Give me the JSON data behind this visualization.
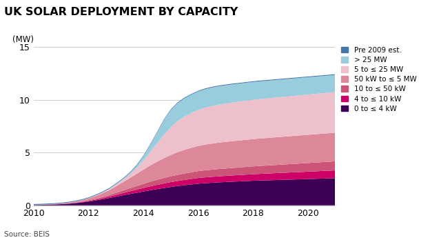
{
  "title": "UK SOLAR DEPLOYMENT BY CAPACITY",
  "ylabel": "(MW)",
  "source": "Source: BEIS",
  "ylim": [
    0,
    15
  ],
  "yticks": [
    0,
    5,
    10,
    15
  ],
  "background_color": "#ffffff",
  "years": [
    2010,
    2010.25,
    2010.5,
    2010.75,
    2011,
    2011.25,
    2011.5,
    2011.75,
    2012,
    2012.25,
    2012.5,
    2012.75,
    2013,
    2013.25,
    2013.5,
    2013.75,
    2014,
    2014.25,
    2014.5,
    2014.75,
    2015,
    2015.25,
    2015.5,
    2015.75,
    2016,
    2016.25,
    2016.5,
    2016.75,
    2017,
    2017.25,
    2017.5,
    2017.75,
    2018,
    2018.25,
    2018.5,
    2018.75,
    2019,
    2019.25,
    2019.5,
    2019.75,
    2020,
    2020.25,
    2020.5,
    2020.75,
    2021
  ],
  "series": {
    "0 to ≤ 4 kW": [
      0.03,
      0.04,
      0.06,
      0.08,
      0.11,
      0.15,
      0.2,
      0.27,
      0.36,
      0.46,
      0.57,
      0.69,
      0.82,
      0.95,
      1.07,
      1.19,
      1.31,
      1.43,
      1.54,
      1.64,
      1.74,
      1.83,
      1.91,
      1.98,
      2.05,
      2.1,
      2.14,
      2.18,
      2.21,
      2.24,
      2.27,
      2.3,
      2.33,
      2.35,
      2.37,
      2.39,
      2.41,
      2.43,
      2.45,
      2.47,
      2.49,
      2.51,
      2.53,
      2.55,
      2.57
    ],
    "4 to ≤ 10 kW": [
      0.005,
      0.006,
      0.008,
      0.01,
      0.014,
      0.02,
      0.028,
      0.04,
      0.056,
      0.075,
      0.1,
      0.13,
      0.17,
      0.21,
      0.25,
      0.29,
      0.33,
      0.37,
      0.4,
      0.43,
      0.46,
      0.48,
      0.5,
      0.52,
      0.54,
      0.55,
      0.56,
      0.57,
      0.58,
      0.59,
      0.6,
      0.61,
      0.62,
      0.63,
      0.64,
      0.65,
      0.66,
      0.67,
      0.68,
      0.69,
      0.7,
      0.71,
      0.72,
      0.73,
      0.74
    ],
    "10 to ≤ 50 kW": [
      0.005,
      0.006,
      0.008,
      0.01,
      0.014,
      0.02,
      0.03,
      0.043,
      0.06,
      0.082,
      0.11,
      0.14,
      0.19,
      0.24,
      0.29,
      0.34,
      0.39,
      0.44,
      0.48,
      0.52,
      0.55,
      0.58,
      0.61,
      0.63,
      0.65,
      0.67,
      0.68,
      0.69,
      0.7,
      0.71,
      0.72,
      0.73,
      0.74,
      0.75,
      0.76,
      0.77,
      0.78,
      0.79,
      0.8,
      0.81,
      0.82,
      0.83,
      0.84,
      0.85,
      0.86
    ],
    "50 kW to ≤ 5 MW": [
      0.01,
      0.014,
      0.019,
      0.026,
      0.037,
      0.054,
      0.08,
      0.12,
      0.17,
      0.25,
      0.35,
      0.47,
      0.62,
      0.78,
      0.96,
      1.15,
      1.35,
      1.54,
      1.71,
      1.88,
      2.02,
      2.14,
      2.24,
      2.32,
      2.38,
      2.43,
      2.47,
      2.5,
      2.52,
      2.54,
      2.55,
      2.57,
      2.58,
      2.6,
      2.61,
      2.62,
      2.63,
      2.64,
      2.65,
      2.66,
      2.67,
      2.68,
      2.69,
      2.7,
      2.71
    ],
    "5 to ≤ 25 MW": [
      0.003,
      0.004,
      0.005,
      0.006,
      0.008,
      0.011,
      0.015,
      0.022,
      0.032,
      0.047,
      0.069,
      0.1,
      0.15,
      0.22,
      0.34,
      0.55,
      0.87,
      1.28,
      1.74,
      2.2,
      2.62,
      2.95,
      3.15,
      3.3,
      3.42,
      3.5,
      3.56,
      3.6,
      3.63,
      3.66,
      3.68,
      3.7,
      3.72,
      3.74,
      3.75,
      3.76,
      3.77,
      3.78,
      3.79,
      3.8,
      3.81,
      3.82,
      3.83,
      3.84,
      3.85
    ],
    "> 25 MW": [
      0.0,
      0.0,
      0.0,
      0.0,
      0.0,
      0.0,
      0.0,
      0.0,
      0.0,
      0.01,
      0.02,
      0.03,
      0.05,
      0.08,
      0.13,
      0.22,
      0.38,
      0.65,
      1.0,
      1.4,
      1.62,
      1.7,
      1.72,
      1.73,
      1.74,
      1.75,
      1.75,
      1.74,
      1.73,
      1.72,
      1.71,
      1.7,
      1.69,
      1.68,
      1.67,
      1.67,
      1.66,
      1.66,
      1.65,
      1.65,
      1.64,
      1.64,
      1.63,
      1.63,
      1.62
    ],
    "Pre 2009 est.": [
      0.07,
      0.07,
      0.07,
      0.07,
      0.07,
      0.07,
      0.07,
      0.07,
      0.07,
      0.07,
      0.07,
      0.07,
      0.07,
      0.07,
      0.07,
      0.07,
      0.07,
      0.07,
      0.07,
      0.07,
      0.07,
      0.07,
      0.07,
      0.07,
      0.07,
      0.07,
      0.07,
      0.07,
      0.07,
      0.07,
      0.07,
      0.07,
      0.07,
      0.07,
      0.07,
      0.07,
      0.07,
      0.07,
      0.07,
      0.07,
      0.07,
      0.07,
      0.07,
      0.07,
      0.07
    ]
  },
  "colors": {
    "0 to ≤ 4 kW": "#3d0055",
    "4 to ≤ 10 kW": "#cc0066",
    "10 to ≤ 50 kW": "#cc5577",
    "50 kW to ≤ 5 MW": "#dd8899",
    "5 to ≤ 25 MW": "#eec0cc",
    "> 25 MW": "#99ccdd",
    "Pre 2009 est.": "#4477aa"
  },
  "legend_order": [
    "Pre 2009 est.",
    "> 25 MW",
    "5 to ≤ 25 MW",
    "50 kW to ≤ 5 MW",
    "10 to ≤ 50 kW",
    "4 to ≤ 10 kW",
    "0 to ≤ 4 kW"
  ],
  "stack_order": [
    "0 to ≤ 4 kW",
    "4 to ≤ 10 kW",
    "10 to ≤ 50 kW",
    "50 kW to ≤ 5 MW",
    "5 to ≤ 25 MW",
    "> 25 MW",
    "Pre 2009 est."
  ]
}
